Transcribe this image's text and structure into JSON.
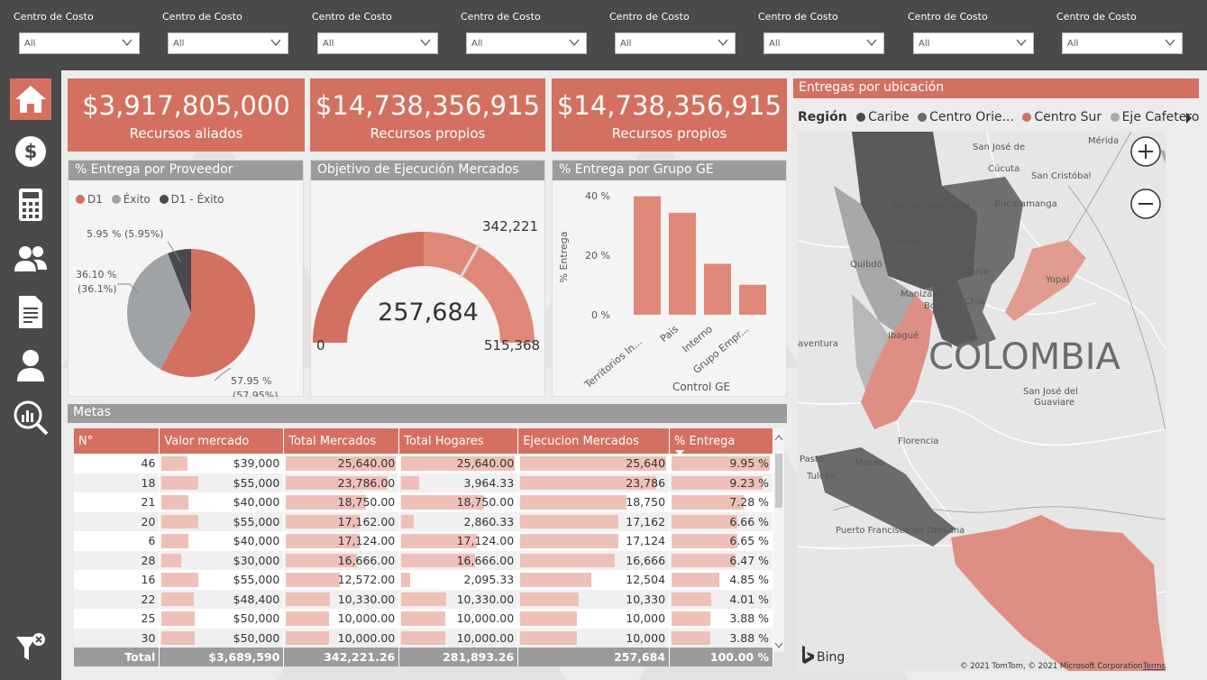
{
  "filters": [
    {
      "label": "Centro de Costo",
      "value": "All"
    },
    {
      "label": "Centro de Costo",
      "value": "All"
    },
    {
      "label": "Centro de Costo",
      "value": "All"
    },
    {
      "label": "Centro de Costo",
      "value": "All"
    },
    {
      "label": "Centro de Costo",
      "value": "All"
    },
    {
      "label": "Centro de Costo",
      "value": "All"
    },
    {
      "label": "Centro de Costo",
      "value": "All"
    },
    {
      "label": "Centro de Costo",
      "value": "All"
    }
  ],
  "sidebar": {
    "items": [
      "home-icon",
      "dollar-icon",
      "calculator-icon",
      "users-icon",
      "document-icon",
      "user-icon",
      "analytics-search-icon"
    ],
    "bottom": "filter-clear-icon"
  },
  "kpis": [
    {
      "value": "$3,917,805,000",
      "caption": "Recursos aliados"
    },
    {
      "value": "$14,738,356,915",
      "caption": "Recursos propios"
    },
    {
      "value": "$14,738,356,915",
      "caption": "Recursos propios"
    }
  ],
  "pie_card": {
    "title": "% Entrega por Proveedor",
    "legend": [
      {
        "label": "D1",
        "color": "#d4705f"
      },
      {
        "label": "Éxito",
        "color": "#9fa3a5"
      },
      {
        "label": "D1 - Éxito",
        "color": "#4a4a4c"
      }
    ],
    "labels": {
      "small_a": "5.95 % (5.95%)",
      "mid_a": "36.10 %",
      "mid_b": "(36.1%)",
      "big_a": "57.95 %",
      "big_b": "(57.95%)"
    }
  },
  "gauge_card": {
    "title": "Objetivo de Ejecución Mercados",
    "value": "257,684",
    "target": "342,221",
    "min": "0",
    "max": "515,368"
  },
  "bar_card": {
    "title": "% Entrega por Grupo GE",
    "ylabel": "% Entrega",
    "xlabel": "Control GE",
    "yticks": [
      "40 %",
      "20 %",
      "0 %"
    ],
    "categories": [
      "Territorios In...",
      "Pais",
      "Interno",
      "Grupo Empr..."
    ]
  },
  "chart_data": [
    {
      "type": "pie",
      "title": "% Entrega por Proveedor",
      "categories": [
        "D1",
        "Éxito",
        "D1 - Éxito"
      ],
      "values": [
        57.95,
        36.1,
        5.95
      ]
    },
    {
      "type": "bar",
      "title": "% Entrega por Grupo GE",
      "categories": [
        "Territorios In...",
        "Pais",
        "Interno",
        "Grupo Empr..."
      ],
      "values": [
        39.5,
        34.0,
        17.0,
        10.0
      ],
      "xlabel": "Control GE",
      "ylabel": "% Entrega",
      "ylim": [
        0,
        45
      ]
    },
    {
      "type": "gauge",
      "title": "Objetivo de Ejecución Mercados",
      "value": 257684,
      "target": 342221,
      "min": 0,
      "max": 515368
    }
  ],
  "metas": {
    "title": "Metas",
    "columns": [
      "N°",
      "Valor mercado",
      "Total Mercados",
      "Total Hogares",
      "Ejecucion Mercados",
      "% Entrega"
    ],
    "rows": [
      {
        "n": "46",
        "valor": "$39,000",
        "vfrac": 0.22,
        "tm": "25,640.00",
        "tmf": 1.0,
        "th": "25,640.00",
        "thf": 1.0,
        "em": "25,640",
        "emf": 1.0,
        "pe": "9.95 %",
        "pef": 1.0
      },
      {
        "n": "18",
        "valor": "$55,000",
        "vfrac": 0.31,
        "tm": "23,786.00",
        "tmf": 0.93,
        "th": "3,964.33",
        "thf": 0.16,
        "em": "23,786",
        "emf": 0.93,
        "pe": "9.23 %",
        "pef": 0.93
      },
      {
        "n": "21",
        "valor": "$40,000",
        "vfrac": 0.23,
        "tm": "18,750.00",
        "tmf": 0.73,
        "th": "18,750.00",
        "thf": 0.73,
        "em": "18,750",
        "emf": 0.73,
        "pe": "7.28 %",
        "pef": 0.73
      },
      {
        "n": "20",
        "valor": "$55,000",
        "vfrac": 0.31,
        "tm": "17,162.00",
        "tmf": 0.67,
        "th": "2,860.33",
        "thf": 0.11,
        "em": "17,162",
        "emf": 0.67,
        "pe": "6.66 %",
        "pef": 0.67
      },
      {
        "n": "6",
        "valor": "$40,000",
        "vfrac": 0.23,
        "tm": "17,124.00",
        "tmf": 0.67,
        "th": "17,124.00",
        "thf": 0.67,
        "em": "17,124",
        "emf": 0.67,
        "pe": "6.65 %",
        "pef": 0.67
      },
      {
        "n": "28",
        "valor": "$30,000",
        "vfrac": 0.17,
        "tm": "16,666.00",
        "tmf": 0.65,
        "th": "16,666.00",
        "thf": 0.65,
        "em": "16,666",
        "emf": 0.65,
        "pe": "6.47 %",
        "pef": 0.65
      },
      {
        "n": "16",
        "valor": "$55,000",
        "vfrac": 0.31,
        "tm": "12,572.00",
        "tmf": 0.49,
        "th": "2,095.33",
        "thf": 0.08,
        "em": "12,504",
        "emf": 0.49,
        "pe": "4.85 %",
        "pef": 0.49
      },
      {
        "n": "22",
        "valor": "$48,400",
        "vfrac": 0.27,
        "tm": "10,330.00",
        "tmf": 0.4,
        "th": "10,330.00",
        "thf": 0.4,
        "em": "10,330",
        "emf": 0.4,
        "pe": "4.01 %",
        "pef": 0.4
      },
      {
        "n": "25",
        "valor": "$50,000",
        "vfrac": 0.28,
        "tm": "10,000.00",
        "tmf": 0.39,
        "th": "10,000.00",
        "thf": 0.39,
        "em": "10,000",
        "emf": 0.39,
        "pe": "3.88 %",
        "pef": 0.39
      },
      {
        "n": "30",
        "valor": "$50,000",
        "vfrac": 0.28,
        "tm": "10,000.00",
        "tmf": 0.39,
        "th": "10,000.00",
        "thf": 0.39,
        "em": "10,000",
        "emf": 0.39,
        "pe": "3.88 %",
        "pef": 0.39
      }
    ],
    "total": {
      "label": "Total",
      "valor": "$3,689,590",
      "tm": "342,221.26",
      "th": "281,893.26",
      "em": "257,684",
      "pe": "100.00 %"
    }
  },
  "map_card": {
    "title": "Entregas por ubicación",
    "legend_title": "Región",
    "legend": [
      {
        "label": "Caribe",
        "color": "#4a4a4c"
      },
      {
        "label": "Centro Orie...",
        "color": "#6b6b6d"
      },
      {
        "label": "Centro Sur",
        "color": "#d4705f"
      },
      {
        "label": "Eje Cafetero",
        "color": "#a6a8aa"
      }
    ],
    "country": "COLOMBIA",
    "places": [
      "Mérida",
      "San José de",
      "Cúcuta",
      "San Cristóbal",
      "Barrancabermeja",
      "Bucaramanga",
      "Medellín",
      "Quibdó",
      "Tunja",
      "Yopal",
      "Manizales",
      "Chía",
      "Bogotá",
      "Ibagué",
      "aventura",
      "San José del",
      "Guaviare",
      "Florencia",
      "Pasto",
      "Tulcán",
      "Mocoa",
      "Puerto Francisco de Orellana"
    ],
    "attribution": "© 2021 TomTom, © 2021 Microsoft Corporation",
    "terms": "Terms",
    "bing": "Bing"
  }
}
